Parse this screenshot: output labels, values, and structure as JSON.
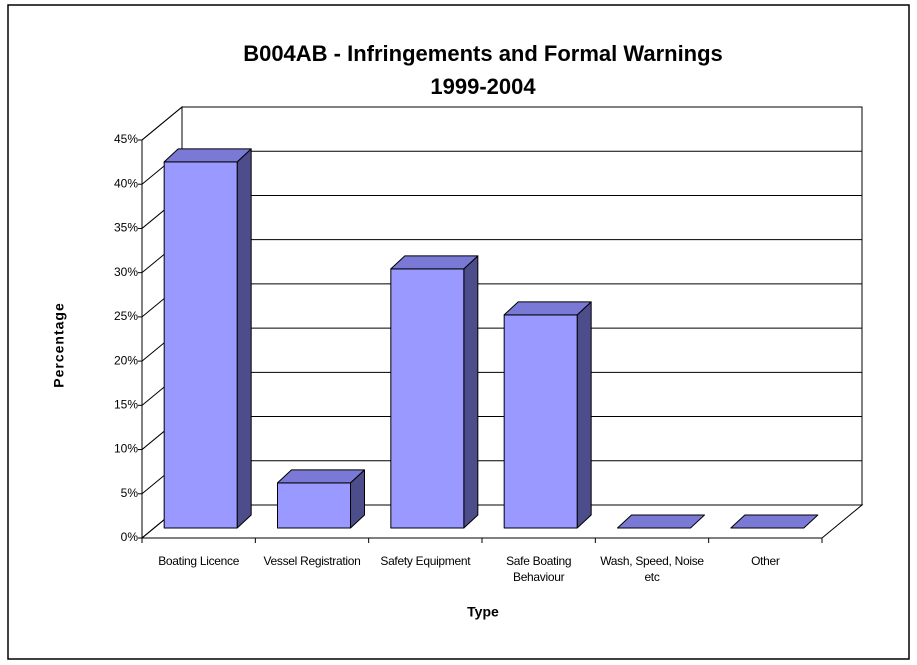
{
  "chart_data": {
    "type": "bar3d",
    "title": "B004AB - Infringements and Formal Warnings",
    "subtitle": "1999-2004",
    "x_label": "Type",
    "y_label": "Percentage",
    "categories": [
      "Boating Licence",
      "Vessel Registration",
      "Safety Equipment",
      "Safe Boating Behaviour",
      "Wash, Speed, Noise etc",
      "Other"
    ],
    "values": [
      41.4,
      5.1,
      29.3,
      24.1,
      0,
      0
    ],
    "color": "#9999ff",
    "ylim": [
      0,
      45
    ],
    "yticks": [
      {
        "value": 0,
        "label": "0%"
      },
      {
        "value": 5,
        "label": "5%"
      },
      {
        "value": 10,
        "label": "10%"
      },
      {
        "value": 15,
        "label": "15%"
      },
      {
        "value": 20,
        "label": "20%"
      },
      {
        "value": 25,
        "label": "25%"
      },
      {
        "value": 30,
        "label": "30%"
      },
      {
        "value": 35,
        "label": "35%"
      },
      {
        "value": 40,
        "label": "40%"
      },
      {
        "value": 45,
        "label": "45%"
      }
    ],
    "grid": true
  }
}
